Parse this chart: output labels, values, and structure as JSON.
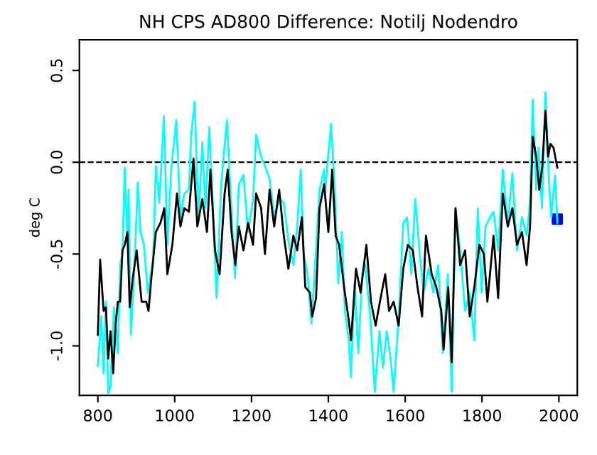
{
  "chart_data": {
    "type": "line",
    "title": "NH CPS AD800 Difference: Notilj Nodendro",
    "ylabel": "deg C",
    "xlim": [
      752,
      2048
    ],
    "ylim": [
      -1.27,
      0.667
    ],
    "xticks": [
      800,
      1000,
      1200,
      1400,
      1600,
      1800,
      2000
    ],
    "yticks": [
      {
        "value": -1.0,
        "label": "-1.0"
      },
      {
        "value": -0.5,
        "label": "-0.5"
      },
      {
        "value": 0.0,
        "label": "0.0"
      },
      {
        "value": 0.5,
        "label": "0.5"
      }
    ],
    "grid": false,
    "legend": false,
    "marker": "none",
    "line_style": "solid",
    "ref_lines": [
      {
        "axis": "y",
        "value": 0,
        "label": null,
        "color": "#000000",
        "line_style": "dashed"
      }
    ],
    "series": [
      {
        "color": "#00ffff",
        "x": [
          800,
          809,
          815,
          821,
          827,
          833,
          842,
          852,
          858,
          864,
          870,
          877,
          880,
          886,
          895,
          904,
          911,
          920,
          930,
          944,
          951,
          960,
          972,
          981,
          991,
          1004,
          1015,
          1025,
          1037,
          1043,
          1052,
          1062,
          1072,
          1080,
          1090,
          1099,
          1109,
          1121,
          1136,
          1146,
          1157,
          1167,
          1179,
          1191,
          1204,
          1212,
          1225,
          1235,
          1247,
          1259,
          1272,
          1284,
          1296,
          1309,
          1319,
          1328,
          1336,
          1346,
          1356,
          1364,
          1377,
          1389,
          1391,
          1407,
          1416,
          1426,
          1435,
          1443,
          1453,
          1459,
          1468,
          1478,
          1488,
          1496,
          1509,
          1521,
          1533,
          1542,
          1552,
          1562,
          1570,
          1583,
          1595,
          1605,
          1616,
          1626,
          1638,
          1648,
          1661,
          1673,
          1686,
          1698,
          1711,
          1721,
          1731,
          1743,
          1756,
          1768,
          1780,
          1789,
          1799,
          1809,
          1821,
          1830,
          1842,
          1854,
          1867,
          1879,
          1891,
          1904,
          1916,
          1925,
          1932,
          1941,
          1947,
          1956,
          1965,
          1974,
          1980,
          1990,
          1996
        ],
        "values": [
          -1.11,
          -0.84,
          -1.15,
          -0.76,
          -1.26,
          -1.22,
          -0.79,
          -1.04,
          -0.56,
          -0.5,
          -0.03,
          -0.43,
          -0.15,
          -0.94,
          -0.58,
          -0.11,
          -0.38,
          -0.45,
          -0.71,
          -0.53,
          -0.02,
          -0.22,
          0.25,
          -0.45,
          -0.04,
          0.23,
          -0.3,
          -0.17,
          -0.15,
          0.15,
          0.33,
          -0.33,
          0.11,
          -0.25,
          0.19,
          -0.22,
          -0.74,
          -0.12,
          0.23,
          -0.2,
          -0.63,
          -0.12,
          -0.07,
          -0.38,
          -0.2,
          0.15,
          0.03,
          -0.02,
          -0.09,
          -0.3,
          -0.2,
          -0.22,
          -0.43,
          -0.56,
          -0.35,
          -0.04,
          -0.5,
          -0.61,
          -0.88,
          -0.61,
          -0.15,
          -0.04,
          -0.17,
          0.21,
          -0.12,
          -0.66,
          -0.38,
          -0.81,
          -0.97,
          -1.17,
          -0.66,
          -1.04,
          -0.61,
          -0.56,
          -0.84,
          -1.25,
          -0.92,
          -1.12,
          -0.92,
          -1.07,
          -1.25,
          -0.84,
          -0.33,
          -0.3,
          -0.61,
          -0.2,
          -0.5,
          -0.71,
          -0.58,
          -0.71,
          -0.56,
          -1.04,
          -0.61,
          -1.25,
          -0.25,
          -0.48,
          -0.81,
          -0.71,
          -0.97,
          -0.25,
          -0.71,
          -0.35,
          -0.3,
          -0.27,
          -0.48,
          -0.04,
          -0.33,
          -0.06,
          -0.48,
          -0.3,
          -0.4,
          -0.22,
          0.34,
          -0.15,
          0.08,
          -0.25,
          0.38,
          -0.09,
          -0.3,
          -0.07,
          -0.33
        ]
      },
      {
        "color": "#000000",
        "x": [
          800,
          806,
          815,
          821,
          827,
          833,
          840,
          846,
          852,
          858,
          864,
          870,
          877,
          883,
          891,
          901,
          914,
          926,
          932,
          938,
          951,
          963,
          973,
          981,
          994,
          1006,
          1015,
          1025,
          1037,
          1049,
          1059,
          1072,
          1084,
          1093,
          1105,
          1117,
          1130,
          1138,
          1148,
          1158,
          1167,
          1179,
          1191,
          1204,
          1212,
          1225,
          1235,
          1247,
          1259,
          1272,
          1284,
          1296,
          1309,
          1319,
          1331,
          1340,
          1352,
          1358,
          1368,
          1377,
          1389,
          1400,
          1410,
          1419,
          1428,
          1441,
          1453,
          1459,
          1472,
          1484,
          1499,
          1511,
          1523,
          1536,
          1548,
          1558,
          1570,
          1583,
          1595,
          1607,
          1620,
          1632,
          1644,
          1654,
          1669,
          1681,
          1694,
          1700,
          1712,
          1721,
          1731,
          1743,
          1756,
          1768,
          1780,
          1793,
          1805,
          1814,
          1830,
          1842,
          1854,
          1867,
          1879,
          1891,
          1904,
          1916,
          1925,
          1932,
          1941,
          1949,
          1957,
          1965,
          1972,
          1978,
          1986,
          1996
        ],
        "values": [
          -0.94,
          -0.53,
          -0.81,
          -0.79,
          -1.07,
          -0.92,
          -1.15,
          -0.89,
          -0.76,
          -0.76,
          -0.48,
          -0.45,
          -0.38,
          -0.79,
          -0.63,
          -0.48,
          -0.76,
          -0.76,
          -0.81,
          -0.66,
          -0.38,
          -0.33,
          -0.25,
          -0.61,
          -0.45,
          -0.17,
          -0.35,
          -0.25,
          -0.27,
          0.02,
          -0.35,
          -0.2,
          -0.38,
          -0.04,
          -0.48,
          -0.61,
          -0.17,
          -0.04,
          -0.38,
          -0.56,
          -0.35,
          -0.48,
          -0.33,
          -0.45,
          -0.17,
          -0.25,
          -0.5,
          -0.15,
          -0.35,
          -0.15,
          -0.4,
          -0.58,
          -0.4,
          -0.48,
          -0.3,
          -0.68,
          -0.71,
          -0.84,
          -0.74,
          -0.25,
          -0.12,
          -0.38,
          -0.04,
          -0.4,
          -0.45,
          -0.68,
          -0.86,
          -0.97,
          -0.58,
          -0.71,
          -0.45,
          -0.76,
          -0.89,
          -0.74,
          -0.61,
          -0.81,
          -0.76,
          -0.89,
          -0.58,
          -0.45,
          -0.48,
          -0.68,
          -0.84,
          -0.4,
          -0.61,
          -0.68,
          -0.81,
          -1.02,
          -0.68,
          -1.09,
          -0.25,
          -0.56,
          -0.48,
          -0.84,
          -0.68,
          -0.45,
          -0.5,
          -0.76,
          -0.4,
          -0.74,
          -0.17,
          -0.35,
          -0.25,
          -0.45,
          -0.38,
          -0.56,
          -0.35,
          0.14,
          0.03,
          -0.15,
          -0.02,
          0.28,
          0.03,
          0.1,
          0.08,
          -0.03
        ]
      },
      {
        "type": "scatter",
        "color": "#0000ff",
        "marker": "square",
        "x": [
          1996
        ],
        "values": [
          -0.31
        ]
      }
    ]
  }
}
